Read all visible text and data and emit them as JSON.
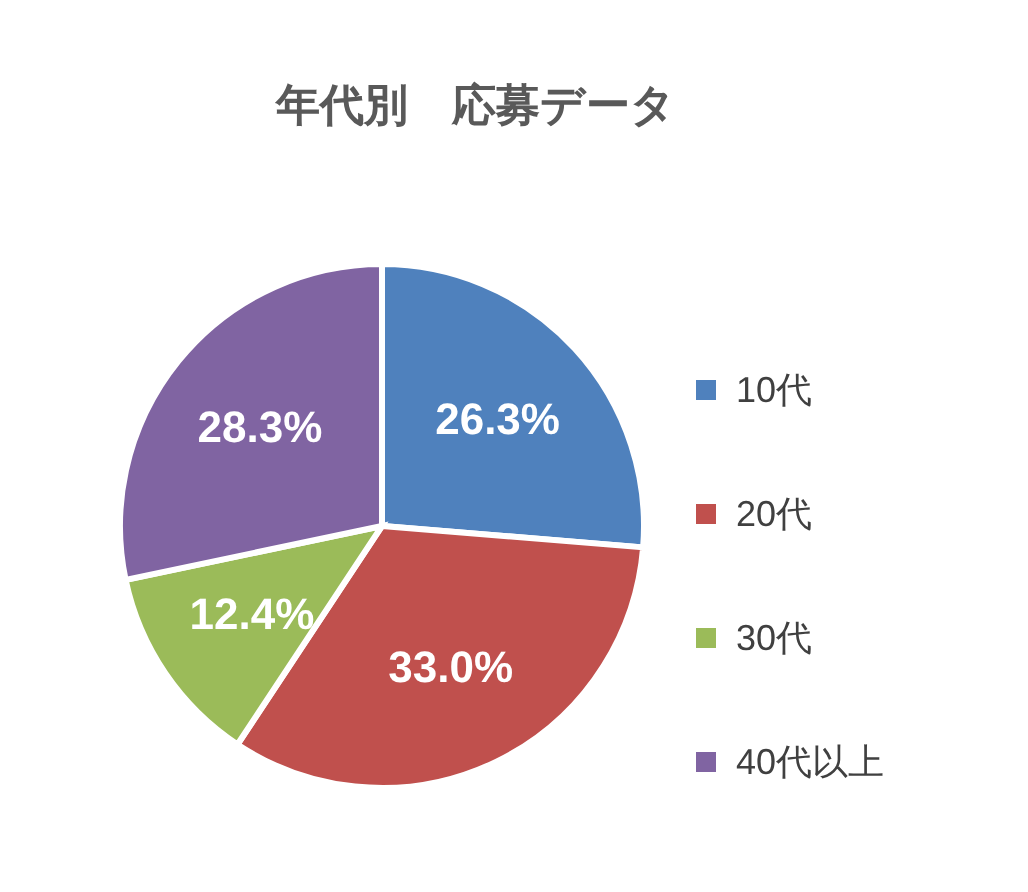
{
  "chart_data": {
    "type": "pie",
    "title": "年代別　応募データ",
    "categories": [
      "10代",
      "20代",
      "30代",
      "40代以上"
    ],
    "values": [
      26.3,
      33.0,
      12.4,
      28.3
    ],
    "value_labels": [
      "26.3%",
      "33.0%",
      "12.4%",
      "28.3%"
    ],
    "colors": [
      "#4f81bd",
      "#c0504d",
      "#9bbb59",
      "#8064a2"
    ],
    "legend": "right"
  }
}
